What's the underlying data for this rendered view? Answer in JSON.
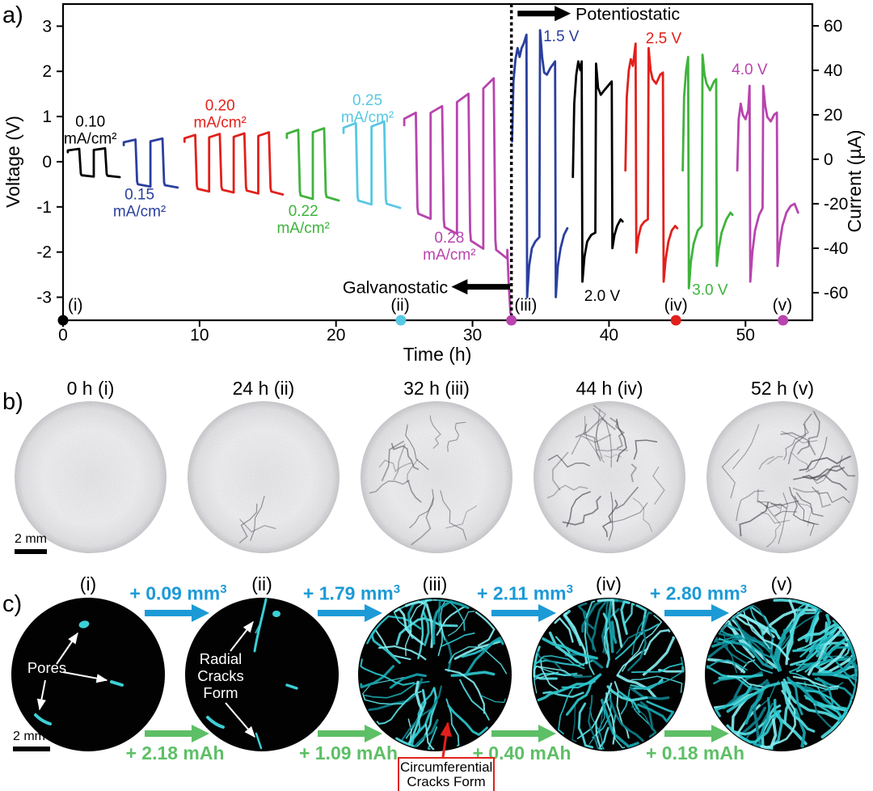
{
  "panels": {
    "a_label": "a)",
    "b_label": "b)",
    "c_label": "c)"
  },
  "chart_data": {
    "type": "line",
    "title": "",
    "xlabel": "Time (h)",
    "ylabel_left": "Voltage (V)",
    "ylabel_right": "Current (µA)",
    "xlim": [
      0,
      54.9
    ],
    "xticks": [
      0,
      10,
      20,
      30,
      40,
      50
    ],
    "ylim_left": [
      -3.51,
      3.49
    ],
    "yticks_left": [
      3,
      2,
      1,
      0,
      -1,
      -2,
      -3
    ],
    "ylim_right": [
      -72.4,
      69.8
    ],
    "yticks_right": [
      60,
      40,
      20,
      0,
      -20,
      -40,
      -60
    ],
    "grid": false,
    "legend": false,
    "transition_t": 32.85,
    "series": [
      {
        "mode": "galvanostatic",
        "name": "0.10 mA/cm²",
        "axis": "left",
        "unit": "V",
        "color": "#000000",
        "pulses": [
          [
            0.35,
            2.25,
            0.25,
            -0.3
          ],
          [
            2.25,
            4.15,
            0.26,
            -0.31
          ]
        ]
      },
      {
        "mode": "galvanostatic",
        "name": "0.15 mA/cm²",
        "axis": "left",
        "unit": "V",
        "color": "#2a3f9e",
        "pulses": [
          [
            4.45,
            6.4,
            0.43,
            -0.5
          ],
          [
            6.4,
            8.4,
            0.45,
            -0.52
          ]
        ]
      },
      {
        "mode": "galvanostatic",
        "name": "0.20 mA/cm²",
        "axis": "left",
        "unit": "V",
        "color": "#e2201b",
        "pulses": [
          [
            8.9,
            10.7,
            0.52,
            -0.6
          ],
          [
            10.7,
            12.5,
            0.54,
            -0.62
          ],
          [
            12.5,
            14.3,
            0.55,
            -0.64
          ],
          [
            14.3,
            16.1,
            0.57,
            -0.66
          ]
        ]
      },
      {
        "mode": "galvanostatic",
        "name": "0.22 mA/cm²",
        "axis": "left",
        "unit": "V",
        "color": "#3fb33c",
        "pulses": [
          [
            16.4,
            18.3,
            0.62,
            -0.75
          ],
          [
            18.3,
            20.2,
            0.65,
            -0.78
          ]
        ]
      },
      {
        "mode": "galvanostatic",
        "name": "0.25 mA/cm²",
        "axis": "left",
        "unit": "V",
        "color": "#58c8e2",
        "pulses": [
          [
            20.55,
            22.6,
            0.75,
            -0.86
          ],
          [
            22.6,
            24.7,
            0.78,
            -0.93
          ]
        ]
      },
      {
        "mode": "galvanostatic",
        "name": "0.28 mA/cm²",
        "axis": "left",
        "unit": "V",
        "color": "#b844ae",
        "pulses": [
          [
            25.0,
            26.93,
            0.95,
            -1.15
          ],
          [
            26.93,
            28.86,
            1.08,
            -1.45
          ],
          [
            28.86,
            30.79,
            1.32,
            -1.75
          ],
          [
            30.79,
            32.55,
            1.62,
            -1.95
          ]
        ],
        "tail": [
          [
            32.55,
            -1.95
          ],
          [
            32.65,
            -2.7
          ],
          [
            32.78,
            -3.35
          ]
        ]
      },
      {
        "mode": "potentiostatic",
        "name": "1.5 V",
        "axis": "right",
        "unit": "µA",
        "color": "#2a3f9e",
        "points": [
          [
            32.9,
            8
          ],
          [
            33.0,
            35
          ],
          [
            33.15,
            45
          ],
          [
            33.3,
            50
          ],
          [
            33.45,
            46
          ],
          [
            33.6,
            50
          ],
          [
            33.75,
            52
          ],
          [
            33.95,
            56
          ],
          [
            34.0,
            -62
          ],
          [
            34.15,
            -48
          ],
          [
            34.35,
            -40
          ],
          [
            34.6,
            -37
          ],
          [
            34.9,
            -35
          ],
          [
            34.95,
            58
          ],
          [
            35.1,
            46
          ],
          [
            35.25,
            39
          ],
          [
            35.45,
            38
          ],
          [
            35.7,
            41
          ],
          [
            36.05,
            44
          ],
          [
            36.1,
            -62
          ],
          [
            36.25,
            -48
          ],
          [
            36.45,
            -40
          ],
          [
            36.7,
            -34
          ],
          [
            36.95,
            -31
          ]
        ]
      },
      {
        "mode": "potentiostatic",
        "name": "2.0 V",
        "axis": "right",
        "unit": "µA",
        "color": "#000000",
        "points": [
          [
            37.35,
            -8
          ],
          [
            37.45,
            25
          ],
          [
            37.6,
            38
          ],
          [
            37.75,
            44
          ],
          [
            37.9,
            40
          ],
          [
            38.0,
            44
          ],
          [
            38.05,
            -55
          ],
          [
            38.2,
            -44
          ],
          [
            38.4,
            -37
          ],
          [
            38.7,
            -34
          ],
          [
            39.0,
            -33
          ],
          [
            39.05,
            43
          ],
          [
            39.2,
            32
          ],
          [
            39.4,
            29
          ],
          [
            39.65,
            31
          ],
          [
            40.2,
            35
          ],
          [
            40.25,
            -40
          ],
          [
            40.4,
            -34
          ],
          [
            40.6,
            -30
          ],
          [
            40.85,
            -27
          ],
          [
            41.0,
            -28
          ]
        ]
      },
      {
        "mode": "potentiostatic",
        "name": "2.5 V",
        "axis": "right",
        "unit": "µA",
        "color": "#e2201b",
        "points": [
          [
            41.2,
            -5
          ],
          [
            41.3,
            28
          ],
          [
            41.45,
            40
          ],
          [
            41.6,
            45
          ],
          [
            41.75,
            42
          ],
          [
            41.95,
            52
          ],
          [
            42.0,
            -42
          ],
          [
            42.15,
            -35
          ],
          [
            42.35,
            -30
          ],
          [
            42.6,
            -28
          ],
          [
            42.85,
            -27
          ],
          [
            42.9,
            50
          ],
          [
            43.05,
            40
          ],
          [
            43.2,
            36
          ],
          [
            43.45,
            34
          ],
          [
            43.75,
            38
          ],
          [
            43.95,
            39
          ],
          [
            44.0,
            -55
          ],
          [
            44.15,
            -45
          ],
          [
            44.35,
            -37
          ],
          [
            44.6,
            -32
          ],
          [
            44.85,
            -30
          ],
          [
            45.0,
            -31
          ]
        ]
      },
      {
        "mode": "potentiostatic",
        "name": "3.0 V",
        "axis": "right",
        "unit": "µA",
        "color": "#3fb33c",
        "points": [
          [
            45.4,
            -5
          ],
          [
            45.5,
            28
          ],
          [
            45.65,
            40
          ],
          [
            45.8,
            46
          ],
          [
            45.85,
            -58
          ],
          [
            46.0,
            -46
          ],
          [
            46.2,
            -38
          ],
          [
            46.5,
            -32
          ],
          [
            46.8,
            -30
          ],
          [
            46.85,
            47
          ],
          [
            47.0,
            38
          ],
          [
            47.15,
            34
          ],
          [
            47.4,
            31
          ],
          [
            47.7,
            35
          ],
          [
            47.85,
            36
          ],
          [
            47.9,
            -48
          ],
          [
            48.05,
            -40
          ],
          [
            48.25,
            -33
          ],
          [
            48.6,
            -27
          ],
          [
            48.9,
            -24
          ],
          [
            49.05,
            -25
          ]
        ]
      },
      {
        "mode": "potentiostatic",
        "name": "4.0 V",
        "axis": "right",
        "unit": "µA",
        "color": "#b844ae",
        "points": [
          [
            49.4,
            -5
          ],
          [
            49.5,
            18
          ],
          [
            49.65,
            25
          ],
          [
            49.8,
            20
          ],
          [
            50.0,
            18
          ],
          [
            50.2,
            22
          ],
          [
            50.3,
            33
          ],
          [
            50.35,
            -55
          ],
          [
            50.5,
            -42
          ],
          [
            50.7,
            -32
          ],
          [
            51.0,
            -25
          ],
          [
            51.25,
            -22
          ],
          [
            51.3,
            33
          ],
          [
            51.45,
            24
          ],
          [
            51.6,
            19
          ],
          [
            51.85,
            17
          ],
          [
            52.1,
            20
          ],
          [
            52.3,
            21
          ],
          [
            52.35,
            -48
          ],
          [
            52.5,
            -38
          ],
          [
            52.7,
            -30
          ],
          [
            53.0,
            -24
          ],
          [
            53.3,
            -21
          ],
          [
            53.6,
            -20
          ],
          [
            53.85,
            -24
          ]
        ]
      }
    ],
    "annotations": [
      {
        "lines": [
          "0.10",
          "mA/cm²"
        ],
        "color": "#000000",
        "t": 2.0,
        "v": 0.78
      },
      {
        "lines": [
          "0.15",
          "mA/cm²"
        ],
        "color": "#2a3f9e",
        "t": 5.6,
        "v": -0.83
      },
      {
        "lines": [
          "0.20",
          "mA/cm²"
        ],
        "color": "#e2201b",
        "t": 11.5,
        "v": 1.14
      },
      {
        "lines": [
          "0.22",
          "mA/cm²"
        ],
        "color": "#3fb33c",
        "t": 17.6,
        "v": -1.2
      },
      {
        "lines": [
          "0.25",
          "mA/cm²"
        ],
        "color": "#58c8e2",
        "t": 22.3,
        "v": 1.25
      },
      {
        "lines": [
          "0.28",
          "mA/cm²"
        ],
        "color": "#b844ae",
        "t": 28.3,
        "v": -1.79
      },
      {
        "lines": [
          "1.5 V"
        ],
        "color": "#2a3f9e",
        "t": 36.5,
        "v": 2.67
      },
      {
        "lines": [
          "2.0 V"
        ],
        "color": "#000000",
        "t": 39.5,
        "v": -3.08
      },
      {
        "lines": [
          "2.5 V"
        ],
        "color": "#e2201b",
        "t": 44.0,
        "v": 2.62
      },
      {
        "lines": [
          "3.0 V"
        ],
        "color": "#3fb33c",
        "t": 47.4,
        "v": -2.95
      },
      {
        "lines": [
          "4.0 V"
        ],
        "color": "#b844ae",
        "t": 50.3,
        "v": 1.93
      }
    ],
    "mode_annotations": {
      "potentiostatic": {
        "label": "Potentiostatic",
        "arrow_from_t": 33.3,
        "arrow_to_t": 37.2,
        "v": 3.28,
        "text_t": 37.55
      },
      "galvanostatic": {
        "label": "Galvanostatic",
        "arrow_from_t": 32.75,
        "arrow_to_t": 28.45,
        "v": -2.77,
        "text_t": 28.2
      }
    },
    "time_markers": [
      {
        "label": "(i)",
        "t": 0,
        "color": "#000000",
        "label_t": 0.9
      },
      {
        "label": "(ii)",
        "t": 24.75,
        "color": "#58c8e2",
        "label_t": 24.7
      },
      {
        "label": "(iii)",
        "t": 32.85,
        "color": "#b844ae",
        "label_t": 33.9
      },
      {
        "label": "(iv)",
        "t": 44.9,
        "color": "#e2201b",
        "label_t": 44.9
      },
      {
        "label": "(v)",
        "t": 52.75,
        "color": "#b844ae",
        "label_t": 52.7
      }
    ]
  },
  "panel_b": {
    "scale_bar": "2 mm",
    "items": [
      {
        "time_label": "0 h (i)",
        "crack_level": 0
      },
      {
        "time_label": "24 h (ii)",
        "crack_level": 1
      },
      {
        "time_label": "32 h (iii)",
        "crack_level": 2
      },
      {
        "time_label": "44 h (iv)",
        "crack_level": 3
      },
      {
        "time_label": "52 h (v)",
        "crack_level": 4
      }
    ]
  },
  "panel_c": {
    "scale_bar": "2 mm",
    "items": [
      {
        "label": "(i)",
        "annotation": "Pores"
      },
      {
        "label": "(ii)",
        "annotation_lines": [
          "Radial",
          "Cracks",
          "Form"
        ]
      },
      {
        "label": "(iii)"
      },
      {
        "label": "(iv)"
      },
      {
        "label": "(v)"
      }
    ],
    "volume_arrows": [
      {
        "text": "+ 0.09 mm",
        "sup": "3"
      },
      {
        "text": "+ 1.79 mm",
        "sup": "3"
      },
      {
        "text": "+ 2.11 mm",
        "sup": "3"
      },
      {
        "text": "+ 2.80 mm",
        "sup": "3"
      }
    ],
    "capacity_arrows": [
      "+ 2.18 mAh",
      "+ 1.09 mAh",
      "+ 0.40 mAh",
      "+ 0.18 mAh"
    ],
    "circumferential_label": [
      "Circumferential",
      "Cracks Form"
    ],
    "colors": {
      "volume": "#1c9ad6",
      "capacity": "#5dbf66",
      "crack": "#2cc7cd",
      "box_border": "#e2201b"
    }
  }
}
